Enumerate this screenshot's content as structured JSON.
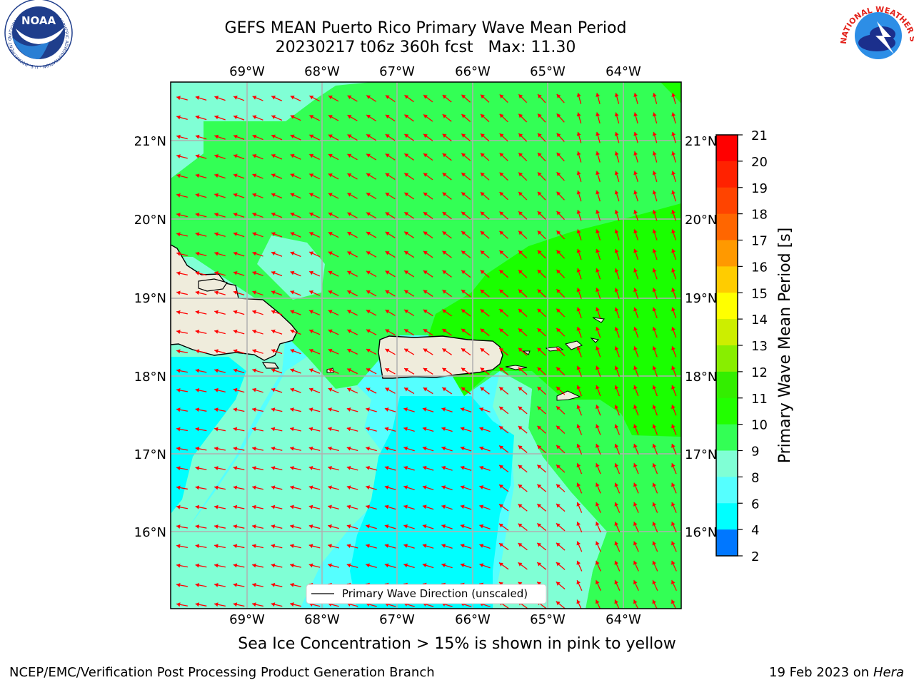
{
  "header": {
    "title_line1": "GEFS MEAN Puerto Rico Primary Wave Mean Period",
    "title_line2": "20230217 t06z 360h fcst   Max: 11.30",
    "noaa_logo_text": "NOAA",
    "noaa_ring_text": "NATIONAL OCEANIC AND ATMOSPHERIC ADMINISTRATION · U.S. DEPARTMENT OF COMMERCE",
    "nws_ring_text": "NATIONAL WEATHER SERVICE"
  },
  "map": {
    "lon_labels": [
      "69°W",
      "68°W",
      "67°W",
      "66°W",
      "65°W",
      "64°W"
    ],
    "lat_labels": [
      "21°N",
      "20°N",
      "19°N",
      "18°N",
      "17°N",
      "16°N"
    ],
    "legend_label": "Primary Wave Direction (unscaled)",
    "arrow_color": "#ff0000",
    "region_colors": {
      "green": "#33ff33",
      "bright_green": "#1aff00",
      "aquamarine": "#80ffd5",
      "light_cyan": "#55ffff",
      "cyan": "#00ffff",
      "land": "#efecdc"
    }
  },
  "colorbar": {
    "label": "Primary Wave Mean Period [s]",
    "ticks": [
      "21",
      "20",
      "19",
      "18",
      "17",
      "16",
      "15",
      "14",
      "13",
      "12",
      "11",
      "10",
      "9",
      "8",
      "6",
      "4",
      "2"
    ],
    "colors": [
      "#ff0000",
      "#ff2200",
      "#ff4400",
      "#ff6600",
      "#ff9900",
      "#ffcc00",
      "#ffff00",
      "#ccee00",
      "#88ee00",
      "#33ee00",
      "#22ff00",
      "#33ff55",
      "#80ffd5",
      "#55ffff",
      "#00ffff",
      "#0077ff",
      "#0000ff"
    ]
  },
  "footer": {
    "note": "Sea Ice Concentration > 15% is shown in pink to yellow",
    "credit_left": "NCEP/EMC/Verification Post Processing Product Generation Branch",
    "credit_date": "19 Feb 2023 on",
    "credit_host": "Hera"
  }
}
